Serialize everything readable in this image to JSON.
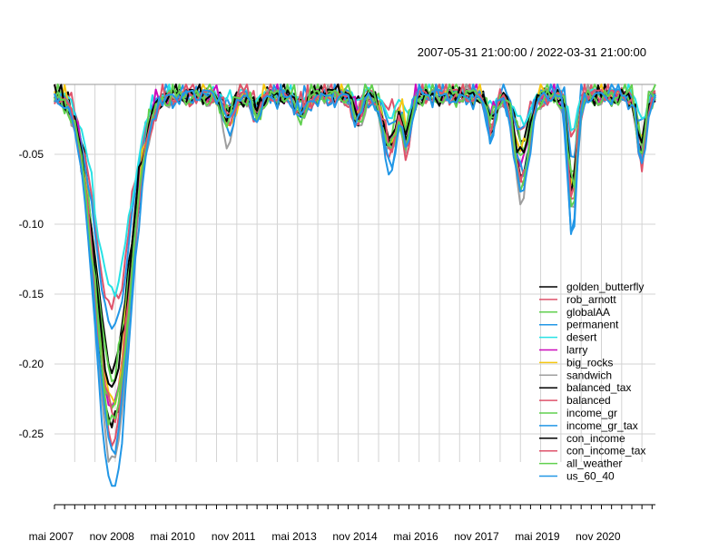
{
  "chart_data": {
    "type": "line",
    "title": "2007-05-31 21:00:00 / 2022-03-31 21:00:00",
    "xlabel": "",
    "ylabel": "",
    "ylim": [
      -0.3,
      0.0
    ],
    "y_ticks": [
      -0.05,
      -0.1,
      -0.15,
      -0.2,
      -0.25
    ],
    "y_tick_labels": [
      "-0.05",
      "-0.10",
      "-0.15",
      "-0.20",
      "-0.25"
    ],
    "x_range": [
      "2007-05-31",
      "2022-03-31"
    ],
    "x_ticks": [
      "2007-05",
      "2008-11",
      "2010-05",
      "2011-11",
      "2013-05",
      "2014-11",
      "2016-05",
      "2017-11",
      "2019-05",
      "2020-11"
    ],
    "x_tick_labels": [
      "mai 2007",
      "nov 2008",
      "mai 2010",
      "nov 2011",
      "mai 2013",
      "nov 2014",
      "mai 2016",
      "nov 2017",
      "mai 2019",
      "nov 2020"
    ],
    "grid": true,
    "legend_position": "bottom-right",
    "series": [
      {
        "name": "golden_butterfly",
        "color": "#000000",
        "scale": 0.7,
        "events": [
          [
            0.12,
            0.06,
            0.004
          ],
          [
            0.4,
            0.055,
            0.006
          ],
          [
            0.25,
            0.06,
            0.004
          ],
          [
            0.2,
            0.05,
            0.006
          ]
        ]
      },
      {
        "name": "rob_arnott",
        "color": "#DF536B",
        "scale": 0.55,
        "events": [
          [
            0.3,
            0.03,
            0.004
          ],
          [
            0.55,
            0.08,
            0.004
          ],
          [
            0.3,
            0.04,
            0.006
          ],
          [
            0.5,
            0.06,
            0.004
          ]
        ]
      },
      {
        "name": "globalAA",
        "color": "#61D04F",
        "scale": 0.72,
        "events": [
          [
            0.4,
            0.05,
            0.006
          ],
          [
            0.75,
            0.06,
            0.004
          ],
          [
            0.28,
            0.05,
            0.006
          ],
          [
            0.55,
            0.058,
            0.004
          ]
        ]
      },
      {
        "name": "permanent",
        "color": "#2297E6",
        "scale": 0.6,
        "events": [
          [
            0.3,
            0.045,
            0.006
          ],
          [
            0.45,
            0.055,
            0.006
          ],
          [
            0.26,
            0.05,
            0.006
          ],
          [
            0.45,
            0.055,
            0.004
          ]
        ]
      },
      {
        "name": "desert",
        "color": "#28E2E5",
        "scale": 0.5,
        "events": [
          [
            0.25,
            0.035,
            0.006
          ],
          [
            0.35,
            0.04,
            0.006
          ],
          [
            0.2,
            0.04,
            0.006
          ],
          [
            0.35,
            0.045,
            0.004
          ]
        ]
      },
      {
        "name": "larry",
        "color": "#CD0BBC",
        "scale": 0.8,
        "events": [
          [
            0.3,
            0.05,
            0.006
          ],
          [
            0.6,
            0.06,
            0.004
          ],
          [
            0.4,
            0.05,
            0.006
          ],
          [
            0.62,
            0.072,
            0.004
          ]
        ]
      },
      {
        "name": "big_rocks",
        "color": "#F5C710",
        "scale": 0.78,
        "events": [
          [
            0.55,
            0.05,
            0.004
          ],
          [
            0.6,
            0.05,
            0.006
          ],
          [
            0.35,
            0.055,
            0.006
          ],
          [
            0.55,
            0.065,
            0.004
          ]
        ]
      },
      {
        "name": "sandwich",
        "color": "#9E9E9E",
        "scale": 0.95,
        "events": [
          [
            0.55,
            0.055,
            0.004
          ],
          [
            0.5,
            0.055,
            0.006
          ],
          [
            0.4,
            0.06,
            0.006
          ],
          [
            0.85,
            0.092,
            0.004
          ]
        ]
      },
      {
        "name": "balanced_tax",
        "color": "#000000",
        "scale": 0.85,
        "events": [
          [
            0.25,
            0.05,
            0.006
          ],
          [
            0.45,
            0.06,
            0.004
          ],
          [
            0.3,
            0.055,
            0.006
          ],
          [
            0.75,
            0.085,
            0.004
          ]
        ]
      },
      {
        "name": "balanced",
        "color": "#DF536B",
        "scale": 0.88,
        "events": [
          [
            0.3,
            0.055,
            0.006
          ],
          [
            0.55,
            0.07,
            0.004
          ],
          [
            0.32,
            0.055,
            0.006
          ],
          [
            0.7,
            0.08,
            0.004
          ]
        ]
      },
      {
        "name": "income_gr",
        "color": "#61D04F",
        "scale": 0.8,
        "events": [
          [
            0.35,
            0.06,
            0.006
          ],
          [
            0.55,
            0.05,
            0.006
          ],
          [
            0.45,
            0.06,
            0.006
          ],
          [
            0.6,
            0.07,
            0.004
          ]
        ]
      },
      {
        "name": "income_gr_tax",
        "color": "#2297E6",
        "scale": 0.9,
        "events": [
          [
            0.5,
            0.07,
            0.006
          ],
          [
            0.7,
            0.06,
            0.006
          ],
          [
            0.5,
            0.065,
            0.006
          ],
          [
            0.6,
            0.07,
            0.004
          ]
        ]
      },
      {
        "name": "con_income",
        "color": "#000000",
        "scale": 0.75,
        "events": [
          [
            0.3,
            0.05,
            0.006
          ],
          [
            0.5,
            0.055,
            0.006
          ],
          [
            0.35,
            0.05,
            0.006
          ],
          [
            0.65,
            0.075,
            0.004
          ]
        ]
      },
      {
        "name": "con_income_tax",
        "color": "#DF536B",
        "scale": 0.82,
        "events": [
          [
            0.35,
            0.055,
            0.006
          ],
          [
            0.65,
            0.075,
            0.004
          ],
          [
            0.4,
            0.05,
            0.006
          ],
          [
            0.9,
            0.095,
            0.004
          ]
        ]
      },
      {
        "name": "all_weather",
        "color": "#61D04F",
        "scale": 0.85,
        "events": [
          [
            0.3,
            0.05,
            0.006
          ],
          [
            0.7,
            0.06,
            0.004
          ],
          [
            0.45,
            0.055,
            0.006
          ],
          [
            0.8,
            0.09,
            0.004
          ]
        ]
      },
      {
        "name": "us_60_40",
        "color": "#2297E6",
        "scale": 1.0,
        "events": [
          [
            0.3,
            0.06,
            0.004
          ],
          [
            0.5,
            0.06,
            0.006
          ],
          [
            0.3,
            0.055,
            0.006
          ],
          [
            0.75,
            0.085,
            0.004
          ]
        ]
      }
    ]
  }
}
